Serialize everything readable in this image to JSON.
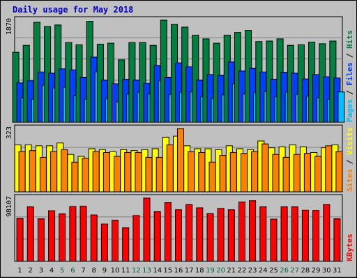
{
  "chart_data": {
    "type": "bar",
    "title": "Daily usage for May 2018",
    "categories": [
      "1",
      "2",
      "3",
      "4",
      "5",
      "6",
      "7",
      "8",
      "9",
      "10",
      "11",
      "12",
      "13",
      "14",
      "15",
      "16",
      "17",
      "18",
      "19",
      "20",
      "21",
      "22",
      "23",
      "24",
      "25",
      "26",
      "27",
      "28",
      "29",
      "30",
      "31"
    ],
    "weekend_days": [
      "5",
      "6",
      "12",
      "13",
      "19",
      "20",
      "26",
      "27"
    ],
    "panels": [
      {
        "id": "hits",
        "max_label": "1870",
        "legend": [
          {
            "text": "Pages",
            "color": "#00c0ff"
          },
          {
            "text": " / ",
            "color": "#000000"
          },
          {
            "text": "Files",
            "color": "#0040ff"
          },
          {
            "text": " / ",
            "color": "#000000"
          },
          {
            "text": "Hits",
            "color": "#008040"
          }
        ],
        "series": [
          {
            "name": "Hits",
            "color": "#008040",
            "values": [
              1310,
              1440,
              1870,
              1790,
              1820,
              1490,
              1450,
              1890,
              1460,
              1480,
              1170,
              1490,
              1490,
              1440,
              1910,
              1830,
              1780,
              1630,
              1560,
              1480,
              1630,
              1680,
              1720,
              1510,
              1520,
              1560,
              1440,
              1450,
              1500,
              1470,
              1520
            ]
          },
          {
            "name": "Files",
            "color": "#0040ff",
            "values": [
              740,
              780,
              940,
              920,
              1000,
              980,
              840,
              1220,
              790,
              720,
              800,
              790,
              730,
              1060,
              840,
              1110,
              1040,
              790,
              890,
              880,
              1130,
              960,
              1010,
              940,
              800,
              930,
              920,
              810,
              890,
              850,
              830
            ]
          },
          {
            "name": "Pages",
            "color": "#00c0ff",
            "values": [
              460,
              430,
              690,
              640,
              650,
              500,
              430,
              940,
              440,
              380,
              530,
              560,
              530,
              780,
              520,
              560,
              570,
              480,
              450,
              510,
              720,
              530,
              550,
              580,
              480,
              560,
              520,
              490,
              460,
              430,
              570
            ]
          }
        ]
      },
      {
        "id": "visits",
        "max_label": "323",
        "legend": [
          {
            "text": "Sites",
            "color": "#ff8000"
          },
          {
            "text": " / ",
            "color": "#000000"
          },
          {
            "text": "Visits",
            "color": "#ffff00"
          }
        ],
        "series": [
          {
            "name": "Visits",
            "color": "#ffff00",
            "values": [
              245,
              245,
              240,
              240,
              255,
              195,
              185,
              225,
              220,
              210,
              220,
              215,
              220,
              225,
              285,
              290,
              240,
              225,
              225,
              220,
              240,
              225,
              220,
              265,
              230,
              235,
              245,
              235,
              205,
              230,
              245
            ]
          },
          {
            "name": "Sites",
            "color": "#ff8000",
            "values": [
              210,
              215,
              180,
              210,
              220,
              155,
              175,
              210,
              205,
              185,
              205,
              205,
              180,
              180,
              245,
              330,
              210,
              205,
              155,
              190,
              205,
              200,
              210,
              250,
              195,
              180,
              195,
              200,
              185,
              240,
              210
            ]
          }
        ]
      },
      {
        "id": "kbytes",
        "max_label": "98107",
        "legend": [
          {
            "text": "KBytes",
            "color": "#ff0000"
          }
        ],
        "series": [
          {
            "name": "KBytes",
            "color": "#ff0000",
            "values": [
              66500,
              84500,
              66000,
              78500,
              73500,
              85000,
              85500,
              72000,
              58000,
              63500,
              52000,
              71000,
              98107,
              77000,
              91000,
              80000,
              88000,
              83000,
              74000,
              82000,
              80000,
              92000,
              94000,
              84500,
              65500,
              84500,
              84500,
              79500,
              79000,
              88000,
              66000
            ]
          }
        ]
      }
    ]
  }
}
